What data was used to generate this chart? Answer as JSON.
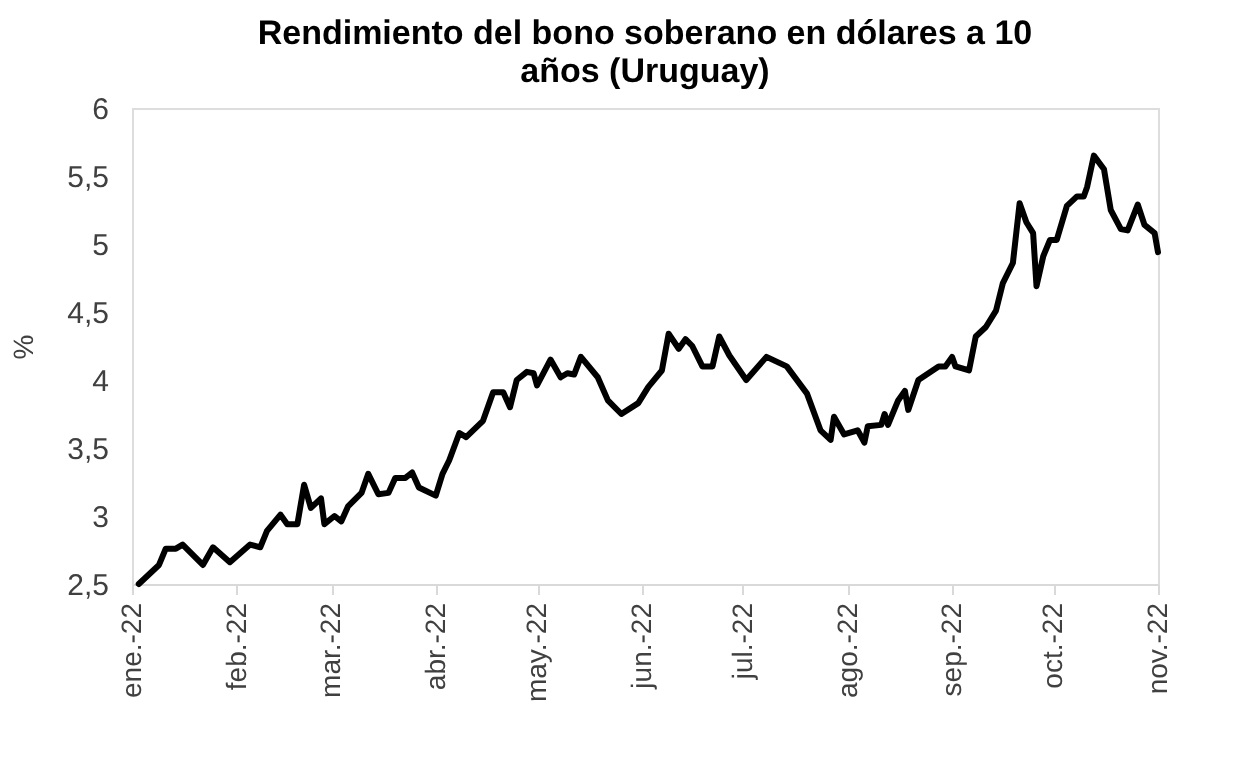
{
  "chart_data": {
    "type": "line",
    "title": "Rendimiento del bono soberano en dólares a 10 años (Uruguay)",
    "ylabel": "%",
    "x": [
      "2022-01-03",
      "2022-01-06",
      "2022-01-09",
      "2022-01-11",
      "2022-01-14",
      "2022-01-16",
      "2022-01-22",
      "2022-01-25",
      "2022-01-30",
      "2022-02-05",
      "2022-02-08",
      "2022-02-10",
      "2022-02-14",
      "2022-02-16",
      "2022-02-19",
      "2022-02-21",
      "2022-02-23",
      "2022-02-26",
      "2022-02-27",
      "2022-03-02",
      "2022-03-04",
      "2022-03-06",
      "2022-03-10",
      "2022-03-12",
      "2022-03-15",
      "2022-03-18",
      "2022-03-20",
      "2022-03-23",
      "2022-03-25",
      "2022-03-27",
      "2022-04-01",
      "2022-04-03",
      "2022-04-05",
      "2022-04-08",
      "2022-04-10",
      "2022-04-15",
      "2022-04-18",
      "2022-04-21",
      "2022-04-23",
      "2022-04-25",
      "2022-04-28",
      "2022-04-30",
      "2022-05-01",
      "2022-05-05",
      "2022-05-08",
      "2022-05-10",
      "2022-05-12",
      "2022-05-14",
      "2022-05-19",
      "2022-05-22",
      "2022-05-26",
      "2022-05-31",
      "2022-06-03",
      "2022-06-07",
      "2022-06-09",
      "2022-06-12",
      "2022-06-14",
      "2022-06-16",
      "2022-06-19",
      "2022-06-22",
      "2022-06-24",
      "2022-06-27",
      "2022-07-02",
      "2022-07-08",
      "2022-07-14",
      "2022-07-20",
      "2022-07-24",
      "2022-07-27",
      "2022-07-28",
      "2022-07-31",
      "2022-08-04",
      "2022-08-06",
      "2022-08-07",
      "2022-08-11",
      "2022-08-12",
      "2022-08-13",
      "2022-08-16",
      "2022-08-18",
      "2022-08-19",
      "2022-08-22",
      "2022-08-28",
      "2022-08-30",
      "2022-09-01",
      "2022-09-02",
      "2022-09-06",
      "2022-09-08",
      "2022-09-11",
      "2022-09-14",
      "2022-09-16",
      "2022-09-19",
      "2022-09-21",
      "2022-09-23",
      "2022-09-25",
      "2022-09-26",
      "2022-09-28",
      "2022-09-30",
      "2022-10-02",
      "2022-10-05",
      "2022-10-08",
      "2022-10-10",
      "2022-10-11",
      "2022-10-13",
      "2022-10-16",
      "2022-10-18",
      "2022-10-21",
      "2022-10-23",
      "2022-10-26",
      "2022-10-28",
      "2022-10-31",
      "2022-11-01"
    ],
    "series": [
      {
        "color": "#000000",
        "values": [
          2.5,
          2.57,
          2.64,
          2.76,
          2.76,
          2.79,
          2.64,
          2.77,
          2.66,
          2.79,
          2.77,
          2.89,
          3.01,
          2.94,
          2.94,
          3.23,
          3.06,
          3.13,
          2.94,
          3.0,
          2.96,
          3.07,
          3.17,
          3.31,
          3.16,
          3.17,
          3.28,
          3.28,
          3.32,
          3.21,
          3.15,
          3.31,
          3.41,
          3.61,
          3.58,
          3.7,
          3.91,
          3.91,
          3.8,
          4.0,
          4.06,
          4.05,
          3.96,
          4.15,
          4.02,
          4.05,
          4.04,
          4.17,
          4.02,
          3.85,
          3.75,
          3.83,
          3.95,
          4.07,
          4.34,
          4.23,
          4.3,
          4.25,
          4.1,
          4.1,
          4.32,
          4.18,
          4.0,
          4.17,
          4.1,
          3.9,
          3.63,
          3.56,
          3.73,
          3.6,
          3.63,
          3.54,
          3.66,
          3.67,
          3.75,
          3.67,
          3.85,
          3.92,
          3.78,
          4.0,
          4.1,
          4.1,
          4.17,
          4.1,
          4.07,
          4.32,
          4.39,
          4.51,
          4.71,
          4.86,
          5.3,
          5.16,
          5.08,
          4.69,
          4.91,
          5.03,
          5.03,
          5.28,
          5.35,
          5.35,
          5.42,
          5.65,
          5.55,
          5.25,
          5.11,
          5.1,
          5.29,
          5.14,
          5.08,
          4.94
        ]
      }
    ],
    "xlim": [
      "2022-01-01",
      "2022-11-01"
    ],
    "xticks": [
      {
        "value": "2022-01-01",
        "label": "ene.-22"
      },
      {
        "value": "2022-02-01",
        "label": "feb.-22"
      },
      {
        "value": "2022-03-01",
        "label": "mar.-22"
      },
      {
        "value": "2022-04-01",
        "label": "abr.-22"
      },
      {
        "value": "2022-05-01",
        "label": "may.-22"
      },
      {
        "value": "2022-06-01",
        "label": "jun.-22"
      },
      {
        "value": "2022-07-01",
        "label": "jul.-22"
      },
      {
        "value": "2022-08-01",
        "label": "ago.-22"
      },
      {
        "value": "2022-09-01",
        "label": "sep.-22"
      },
      {
        "value": "2022-10-01",
        "label": "oct.-22"
      },
      {
        "value": "2022-11-01",
        "label": "nov.-22"
      }
    ],
    "ylim": [
      2.5,
      6
    ],
    "yticks": [
      {
        "value": 2.5,
        "label": "2,5"
      },
      3,
      {
        "value": 3.5,
        "label": "3,5"
      },
      4,
      {
        "value": 4.5,
        "label": "4,5"
      },
      5,
      {
        "value": 5.5,
        "label": "5,5"
      },
      6
    ],
    "grid": false,
    "legend": false,
    "line_style": "solid",
    "marker": "none"
  }
}
